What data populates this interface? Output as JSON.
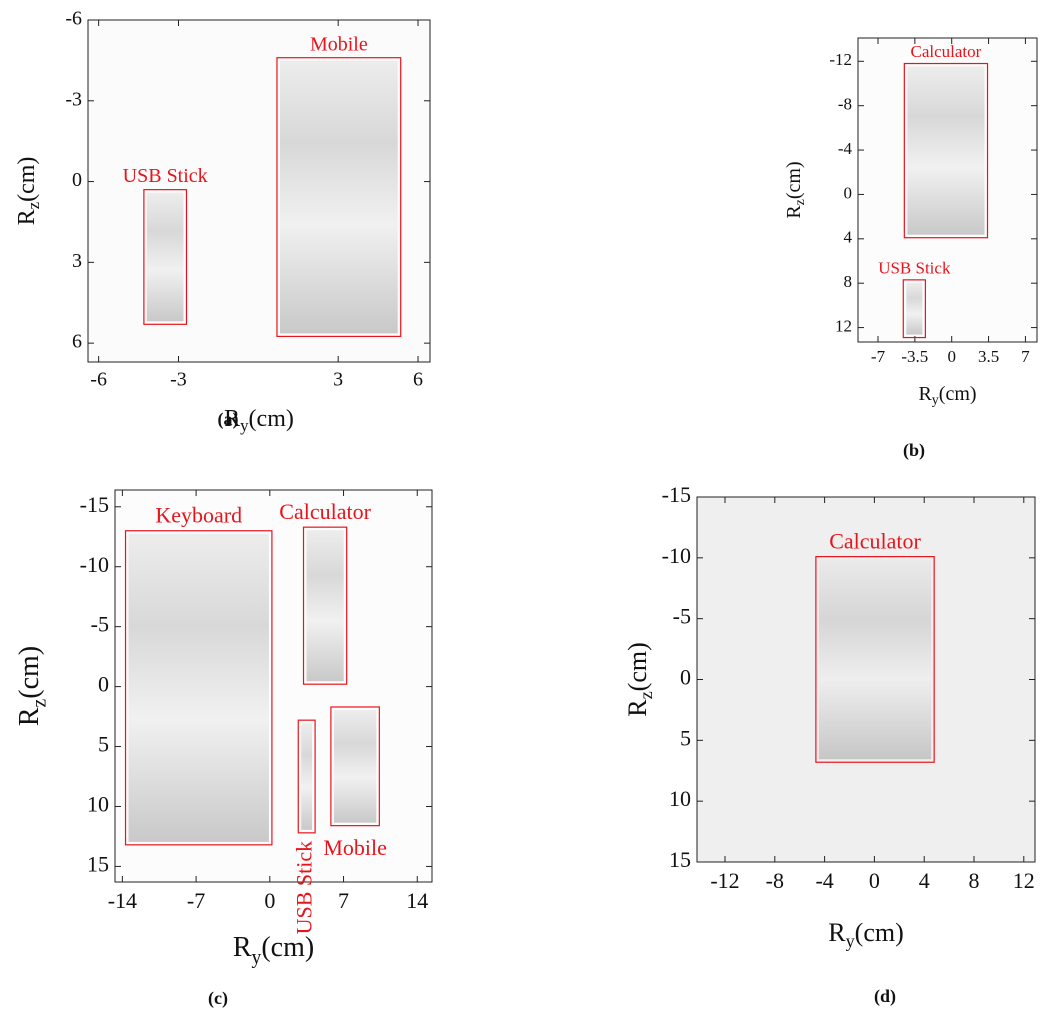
{
  "chart_data": [
    {
      "type": "image",
      "caption": "(a)",
      "x_label": {
        "text": "R",
        "sub": "y",
        "unit": "(cm)"
      },
      "y_label": {
        "text": "R",
        "sub": "z",
        "unit": "(cm)"
      },
      "xlim": [
        -6.4,
        6.45
      ],
      "ylim": [
        -6,
        6.7
      ],
      "xticks": [
        -6,
        -3,
        3,
        6
      ],
      "yticks": [
        -6,
        -3,
        0,
        3,
        6
      ],
      "grid": false,
      "boxes": [
        {
          "label": "USB Stick",
          "ry": [
            -4.3,
            -2.7
          ],
          "rz": [
            0.3,
            5.3
          ]
        },
        {
          "label": "Mobile",
          "ry": [
            0.7,
            5.35
          ],
          "rz": [
            -4.6,
            5.75
          ]
        }
      ]
    },
    {
      "type": "image",
      "caption": "(b)",
      "x_label": {
        "text": "R",
        "sub": "y",
        "unit": "(cm)"
      },
      "y_label": {
        "text": "R",
        "sub": "z",
        "unit": "(cm)"
      },
      "xlim": [
        -8.9,
        8.1
      ],
      "ylim": [
        -14.1,
        13.3
      ],
      "xticks": [
        -7,
        -3.5,
        0,
        3.5,
        7
      ],
      "yticks": [
        -12,
        -8,
        -4,
        0,
        4,
        8,
        12
      ],
      "grid": false,
      "boxes": [
        {
          "label": "Calculator",
          "ry": [
            -4.5,
            3.4
          ],
          "rz": [
            -11.8,
            3.9
          ]
        },
        {
          "label": "USB Stick",
          "ry": [
            -4.6,
            -2.5
          ],
          "rz": [
            7.7,
            12.9
          ]
        }
      ]
    },
    {
      "type": "image",
      "caption": "(c)",
      "x_label": {
        "text": "R",
        "sub": "y",
        "unit": "(cm)"
      },
      "y_label": {
        "text": "R",
        "sub": "z",
        "unit": "(cm)"
      },
      "xlim": [
        -14.7,
        15.4
      ],
      "ylim": [
        -16.4,
        16.3
      ],
      "xticks": [
        -14,
        -7,
        0,
        7,
        14
      ],
      "yticks": [
        -15,
        -10,
        -5,
        0,
        5,
        10,
        15
      ],
      "grid": false,
      "boxes": [
        {
          "label": "Keyboard",
          "ry": [
            -13.7,
            0.2
          ],
          "rz": [
            -13,
            13.2
          ]
        },
        {
          "label": "Calculator",
          "ry": [
            3.2,
            7.3
          ],
          "rz": [
            -13.3,
            -0.2
          ]
        },
        {
          "label": "USB Stick",
          "ry": [
            2.7,
            4.3
          ],
          "rz": [
            2.8,
            12.2
          ]
        },
        {
          "label": "Mobile",
          "ry": [
            5.8,
            10.4
          ],
          "rz": [
            1.7,
            11.6
          ]
        }
      ]
    },
    {
      "type": "image",
      "caption": "(d)",
      "x_label": {
        "text": "R",
        "sub": "y",
        "unit": "(cm)"
      },
      "y_label": {
        "text": "R",
        "sub": "z",
        "unit": "(cm)"
      },
      "xlim": [
        -14.25,
        12.9
      ],
      "ylim": [
        -15,
        15
      ],
      "xticks": [
        -12,
        -8,
        -4,
        0,
        4,
        8,
        12
      ],
      "yticks": [
        -15,
        -10,
        -5,
        0,
        5,
        10,
        15
      ],
      "grid": false,
      "boxes": [
        {
          "label": "Calculator",
          "ry": [
            -4.7,
            4.8
          ],
          "rz": [
            -10.1,
            6.8
          ]
        }
      ]
    }
  ]
}
